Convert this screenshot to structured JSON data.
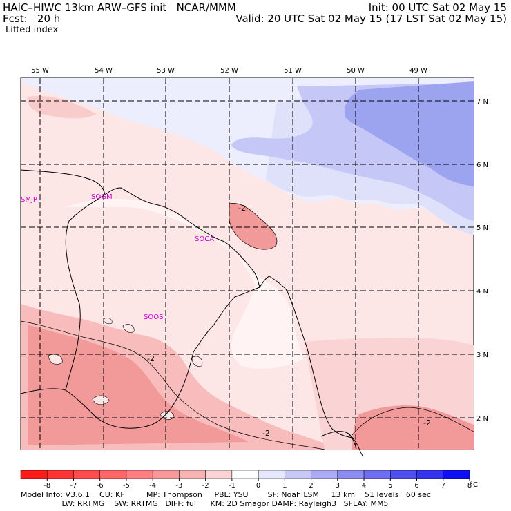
{
  "header": {
    "title": "HAIC–HIWC 13km ARW–GFS init   NCAR/MMM",
    "forecast": "Fcst:   20 h",
    "field": "Lifted index",
    "init": "Init: 00 UTC Sat 02 May 15",
    "valid": "Valid: 20 UTC Sat 02 May 15 (17 LST Sat 02 May 15)"
  },
  "axes": {
    "lon_labels": [
      "55 W",
      "54 W",
      "53 W",
      "52 W",
      "51 W",
      "50 W",
      "49 W"
    ],
    "lat_labels": [
      "7 N",
      "6 N",
      "5 N",
      "4 N",
      "3 N",
      "2 N"
    ]
  },
  "stations": [
    "SMJP",
    "SOGM",
    "SOCA",
    "SOOS"
  ],
  "contour_labels": [
    "-2",
    "-2",
    "-2",
    "-2"
  ],
  "colorbar": {
    "ticks": [
      "-8",
      "-7",
      "-6",
      "-5",
      "-4",
      "-3",
      "-2",
      "-1",
      "0",
      "1",
      "2",
      "3",
      "4",
      "5",
      "6",
      "7",
      "8"
    ],
    "unit": "°C",
    "colors": [
      "#ff1a1a",
      "#ff3333",
      "#ff4d4d",
      "#ff6666",
      "#ff8080",
      "#f79999",
      "#f7b3b3",
      "#fad4d4",
      "#ffffff",
      "#e6e6fc",
      "#c8c8f7",
      "#aaaaf5",
      "#8c8cf0",
      "#6e6ef0",
      "#4f4ff0",
      "#3333f0",
      "#0f0ff5"
    ]
  },
  "footer": {
    "line1": "Model Info: V3.6.1    CU: KF         MP: Thompson     PBL: YSU        SF: Noah LSM     13 km    51 levels   60 sec",
    "line2": "                 LW: RRTMG    SW: RRTMG   DIFF: full     KM: 2D Smagor DAMP: Rayleigh3   SFLAY: MM5"
  },
  "colors": {
    "warm_light": "#fde6e6",
    "warm_mid": "#f8bcbc",
    "warm_strong": "#f29a9a",
    "cool_light": "#ecedfd",
    "cool_mid": "#c5c8f6",
    "cool_strong": "#9ca3ef",
    "station_text": "#cc00cc",
    "field_label": "#1a1acc"
  }
}
